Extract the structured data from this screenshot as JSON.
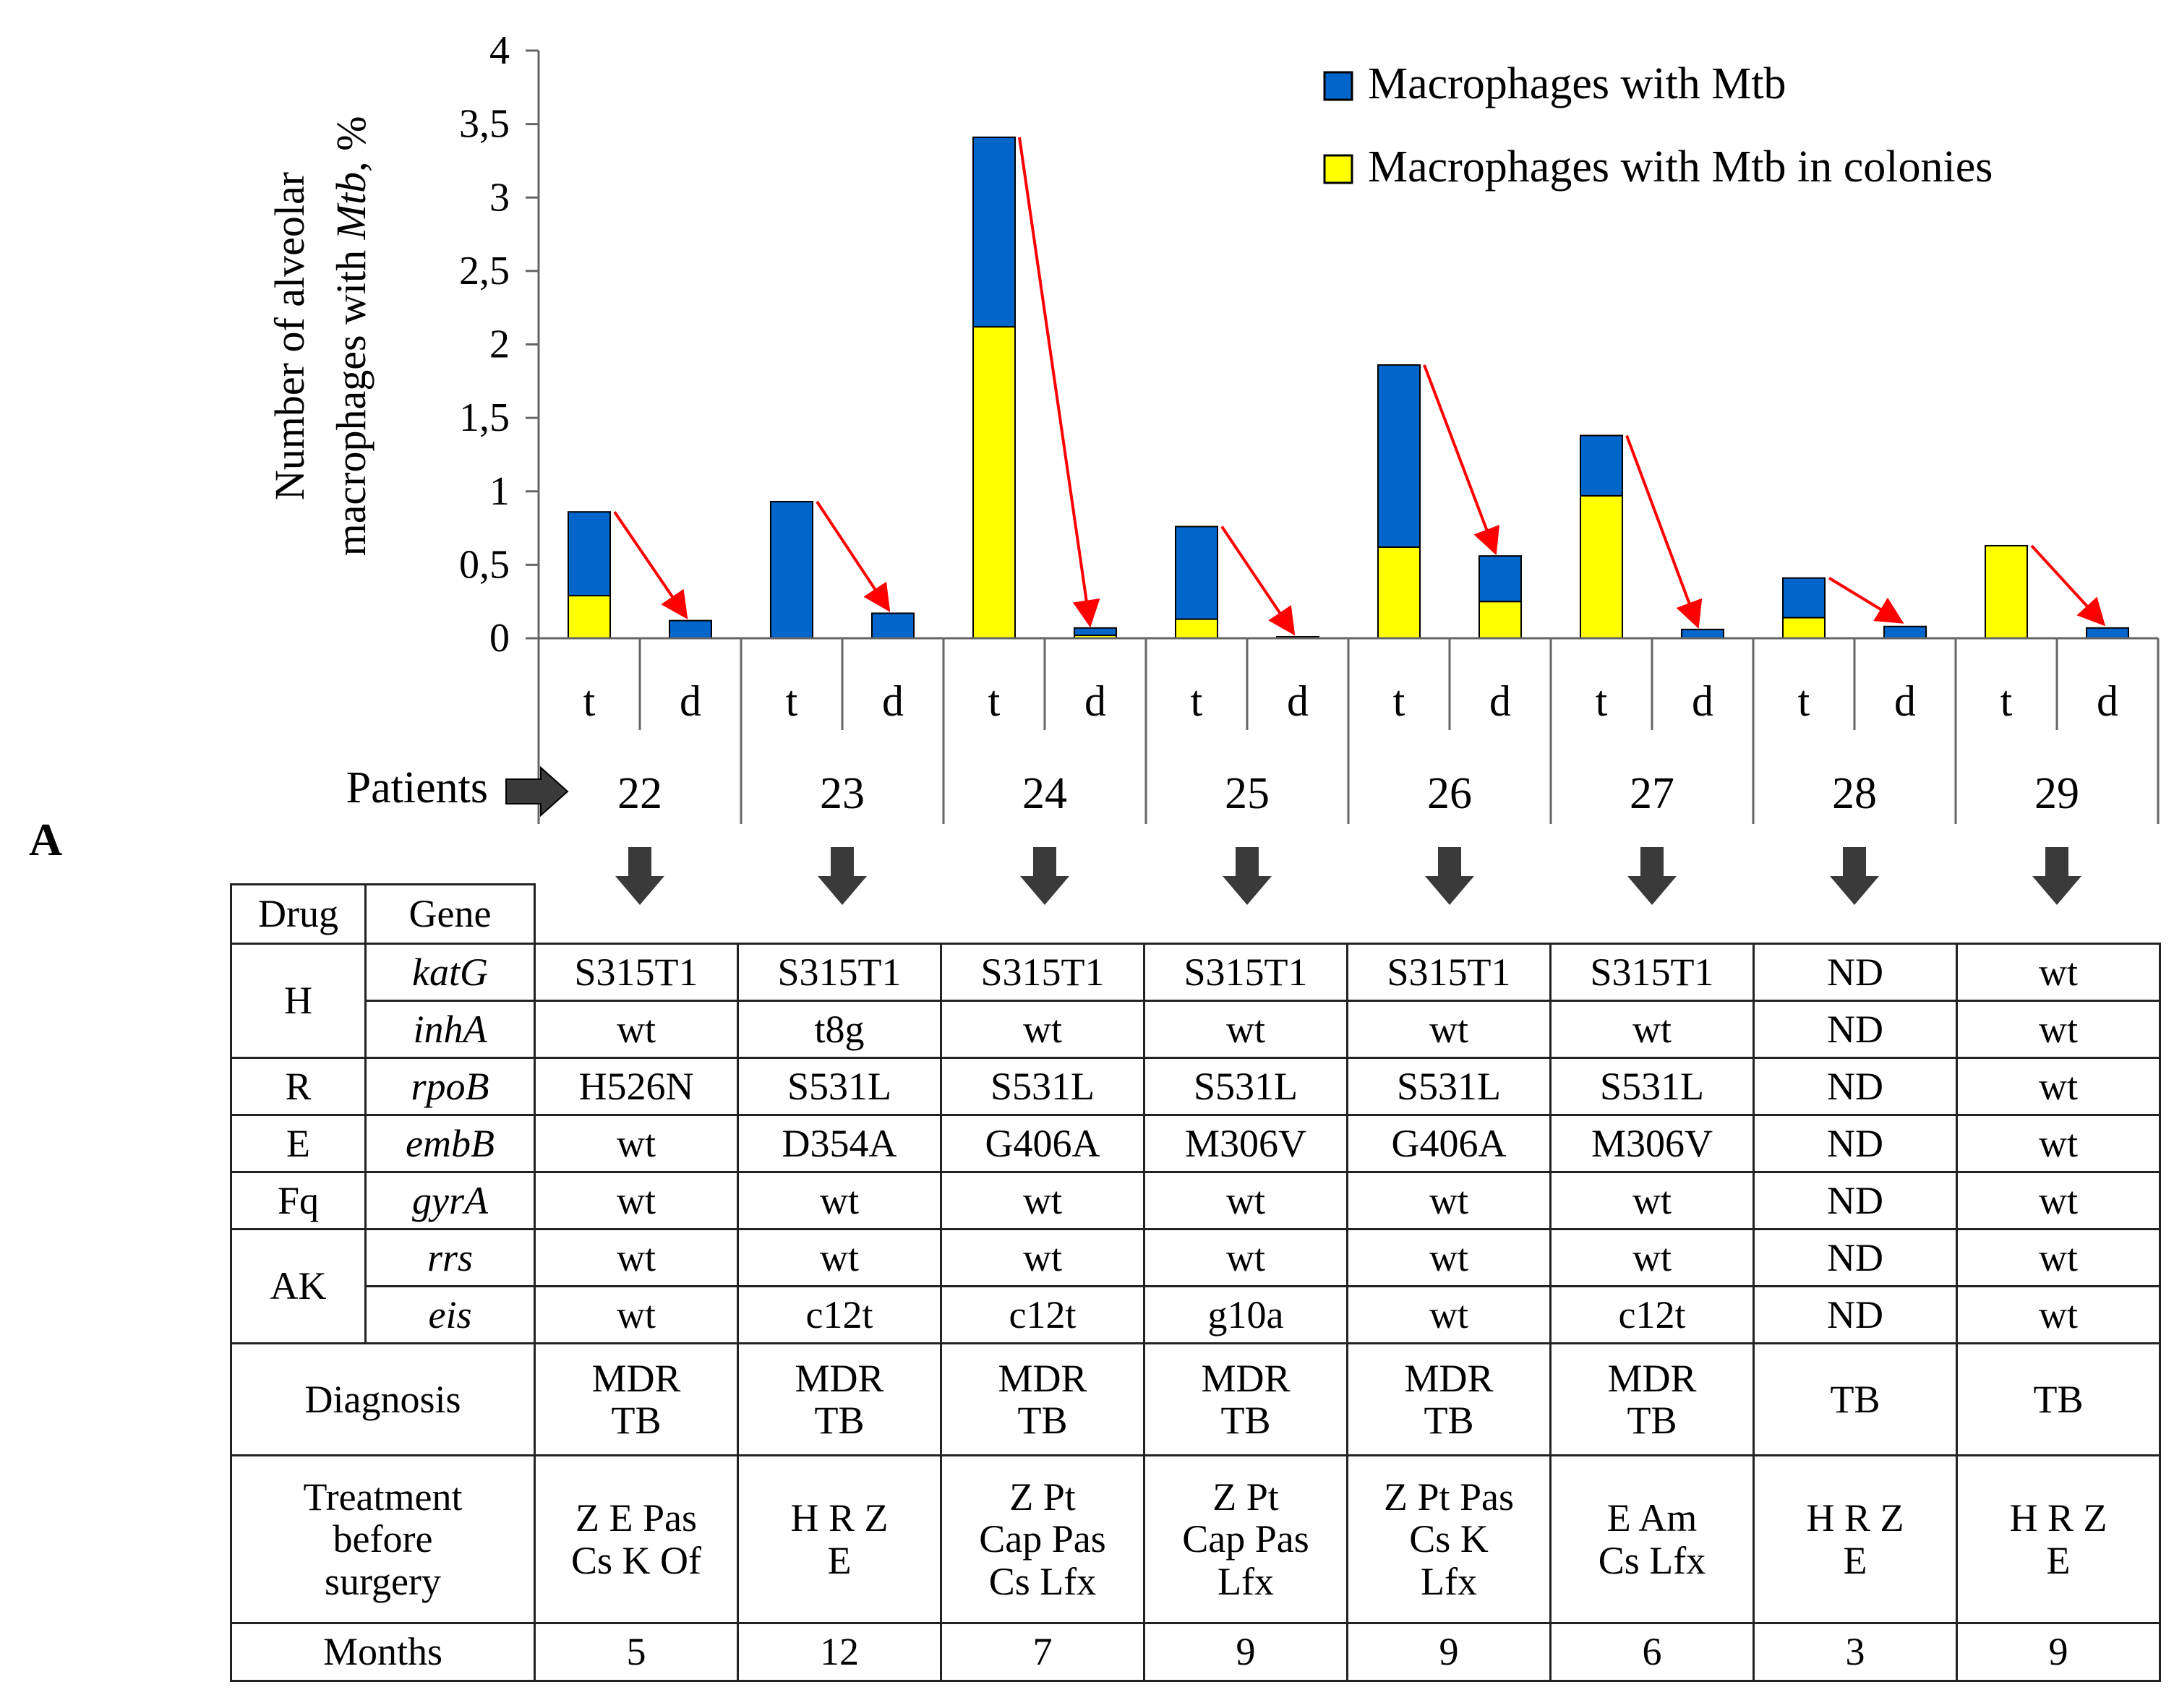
{
  "panel_label": "A",
  "chart_data": {
    "type": "bar",
    "stacked": true,
    "ylabel_line1": "Number of alveolar",
    "ylabel_line2_pre": "macrophages with ",
    "ylabel_line2_italic": "Mtb",
    "ylabel_line2_post": ", %",
    "ylim": [
      0,
      4
    ],
    "yticks": [
      0,
      0.5,
      1,
      1.5,
      2,
      2.5,
      3,
      3.5,
      4
    ],
    "ytick_labels": [
      "0",
      "0,5",
      "1",
      "1,5",
      "2",
      "2,5",
      "3",
      "3,5",
      "4"
    ],
    "legend_position": "top-right",
    "legend": [
      {
        "label": "Macrophages with Mtb",
        "color": "#0066cc"
      },
      {
        "label": "Macrophages with Mtb in colonies",
        "color": "#ffff00"
      }
    ],
    "patients_label": "Patients",
    "patients": [
      "22",
      "23",
      "24",
      "25",
      "26",
      "27",
      "28",
      "29"
    ],
    "sub_categories": [
      "t",
      "d"
    ],
    "series": [
      {
        "name": "Macrophages with Mtb in colonies",
        "color": "#ffff00",
        "values": [
          0.29,
          0.0,
          0.0,
          0.0,
          2.12,
          0.02,
          0.13,
          0.0,
          0.62,
          0.25,
          0.97,
          0.0,
          0.14,
          0.0,
          0.63,
          0.0
        ]
      },
      {
        "name": "Macrophages with Mtb",
        "color": "#0066cc",
        "values": [
          0.57,
          0.12,
          0.93,
          0.17,
          1.29,
          0.05,
          0.63,
          0.01,
          1.24,
          0.31,
          0.41,
          0.06,
          0.27,
          0.08,
          0.0,
          0.07
        ]
      }
    ],
    "arrow_color": "#ff0000",
    "bar_edge_color": "#000000"
  },
  "table": {
    "header_drug": "Drug",
    "header_gene": "Gene",
    "rows": [
      {
        "drug": "H",
        "drug_span": 2,
        "gene": "katG",
        "values": [
          "S315T1",
          "S315T1",
          "S315T1",
          "S315T1",
          "S315T1",
          "S315T1",
          "ND",
          "wt"
        ]
      },
      {
        "gene": "inhA",
        "values": [
          "wt",
          "t8g",
          "wt",
          "wt",
          "wt",
          "wt",
          "ND",
          "wt"
        ]
      },
      {
        "drug": "R",
        "drug_span": 1,
        "gene": "rpoB",
        "values": [
          "H526N",
          "S531L",
          "S531L",
          "S531L",
          "S531L",
          "S531L",
          "ND",
          "wt"
        ]
      },
      {
        "drug": "E",
        "drug_span": 1,
        "gene": "embB",
        "values": [
          "wt",
          "D354A",
          "G406A",
          "M306V",
          "G406A",
          "M306V",
          "ND",
          "wt"
        ]
      },
      {
        "drug": "Fq",
        "drug_span": 1,
        "gene": "gyrA",
        "values": [
          "wt",
          "wt",
          "wt",
          "wt",
          "wt",
          "wt",
          "ND",
          "wt"
        ]
      },
      {
        "drug": "AK",
        "drug_span": 2,
        "gene": "rrs",
        "values": [
          "wt",
          "wt",
          "wt",
          "wt",
          "wt",
          "wt",
          "ND",
          "wt"
        ]
      },
      {
        "gene": "eis",
        "values": [
          "wt",
          "c12t",
          "c12t",
          "g10a",
          "wt",
          "c12t",
          "ND",
          "wt"
        ]
      }
    ],
    "diagnosis_label": "Diagnosis",
    "diagnosis": [
      [
        "MDR",
        "TB"
      ],
      [
        "MDR",
        "TB"
      ],
      [
        "MDR",
        "TB"
      ],
      [
        "MDR",
        "TB"
      ],
      [
        "MDR",
        "TB"
      ],
      [
        "MDR",
        "TB"
      ],
      [
        "TB"
      ],
      [
        "TB"
      ]
    ],
    "treatment_label": [
      "Treatment",
      "before",
      "surgery"
    ],
    "treatment": [
      [
        "Z E Pas",
        "Cs K Of"
      ],
      [
        "H R Z",
        "E"
      ],
      [
        "Z Pt",
        "Cap Pas",
        "Cs Lfx"
      ],
      [
        "Z Pt",
        "Cap Pas",
        "Lfx"
      ],
      [
        "Z Pt Pas",
        "Cs K",
        "Lfx"
      ],
      [
        "E Am",
        "Cs Lfx"
      ],
      [
        "H R Z",
        "E"
      ],
      [
        "H R Z",
        "E"
      ]
    ],
    "months_label": "Months",
    "months": [
      "5",
      "12",
      "7",
      "9",
      "9",
      "6",
      "3",
      "9"
    ]
  }
}
